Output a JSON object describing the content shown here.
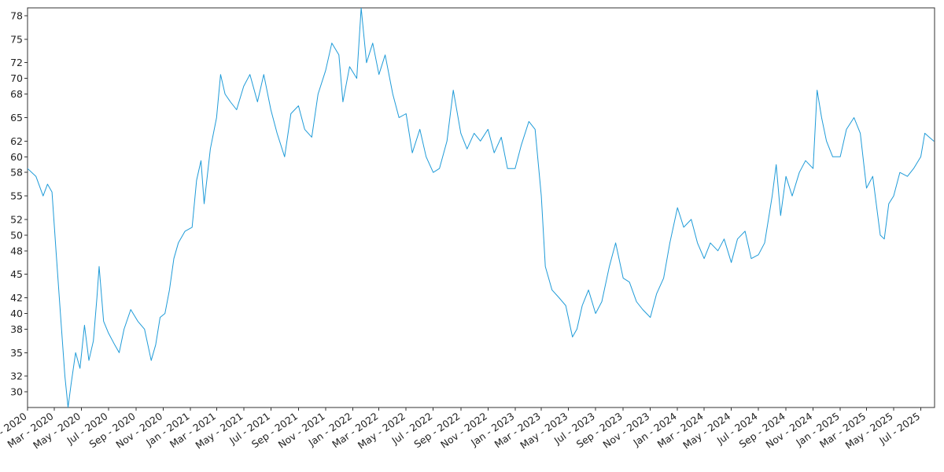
{
  "chart_data": {
    "type": "line",
    "title": "",
    "xlabel": "",
    "ylabel": "",
    "xlim": [
      "2020-01-01",
      "2025-08-01"
    ],
    "ylim": [
      28,
      79
    ],
    "grid": false,
    "legend": "none",
    "series_color": "#1f9bd8",
    "yticks": [
      30,
      32,
      35,
      38,
      40,
      42,
      45,
      48,
      50,
      52,
      55,
      58,
      60,
      62,
      65,
      68,
      70,
      72,
      75,
      78
    ],
    "xticks": [
      {
        "date": "2020-01-01",
        "label": "Jan - 2020"
      },
      {
        "date": "2020-03-01",
        "label": "Mar - 2020"
      },
      {
        "date": "2020-05-01",
        "label": "May - 2020"
      },
      {
        "date": "2020-07-01",
        "label": "Jul - 2020"
      },
      {
        "date": "2020-09-01",
        "label": "Sep - 2020"
      },
      {
        "date": "2020-11-01",
        "label": "Nov - 2020"
      },
      {
        "date": "2021-01-01",
        "label": "Jan - 2021"
      },
      {
        "date": "2021-03-01",
        "label": "Mar - 2021"
      },
      {
        "date": "2021-05-01",
        "label": "May - 2021"
      },
      {
        "date": "2021-07-01",
        "label": "Jul - 2021"
      },
      {
        "date": "2021-09-01",
        "label": "Sep - 2021"
      },
      {
        "date": "2021-11-01",
        "label": "Nov - 2021"
      },
      {
        "date": "2022-01-01",
        "label": "Jan - 2022"
      },
      {
        "date": "2022-03-01",
        "label": "Mar - 2022"
      },
      {
        "date": "2022-05-01",
        "label": "May - 2022"
      },
      {
        "date": "2022-07-01",
        "label": "Jul - 2022"
      },
      {
        "date": "2022-09-01",
        "label": "Sep - 2022"
      },
      {
        "date": "2022-11-01",
        "label": "Nov - 2022"
      },
      {
        "date": "2023-01-01",
        "label": "Jan - 2023"
      },
      {
        "date": "2023-03-01",
        "label": "Mar - 2023"
      },
      {
        "date": "2023-05-01",
        "label": "May - 2023"
      },
      {
        "date": "2023-07-01",
        "label": "Jul - 2023"
      },
      {
        "date": "2023-09-01",
        "label": "Sep - 2023"
      },
      {
        "date": "2023-11-01",
        "label": "Nov - 2023"
      },
      {
        "date": "2024-01-01",
        "label": "Jan - 2024"
      },
      {
        "date": "2024-03-01",
        "label": "Mar - 2024"
      },
      {
        "date": "2024-05-01",
        "label": "May - 2024"
      },
      {
        "date": "2024-07-01",
        "label": "Jul - 2024"
      },
      {
        "date": "2024-09-01",
        "label": "Sep - 2024"
      },
      {
        "date": "2024-11-01",
        "label": "Nov - 2024"
      },
      {
        "date": "2025-01-01",
        "label": "Jan - 2025"
      },
      {
        "date": "2025-03-01",
        "label": "Mar - 2025"
      },
      {
        "date": "2025-05-01",
        "label": "May - 2025"
      },
      {
        "date": "2025-07-01",
        "label": "Jul - 2025"
      }
    ],
    "series": [
      {
        "points": [
          [
            "2020-01-01",
            58.5
          ],
          [
            "2020-01-20",
            57.5
          ],
          [
            "2020-02-05",
            55.0
          ],
          [
            "2020-02-15",
            56.5
          ],
          [
            "2020-02-25",
            55.5
          ],
          [
            "2020-03-05",
            48.0
          ],
          [
            "2020-03-15",
            40.0
          ],
          [
            "2020-03-25",
            32.0
          ],
          [
            "2020-04-01",
            28.0
          ],
          [
            "2020-04-08",
            31.0
          ],
          [
            "2020-04-18",
            35.0
          ],
          [
            "2020-04-28",
            33.0
          ],
          [
            "2020-05-08",
            38.5
          ],
          [
            "2020-05-18",
            34.0
          ],
          [
            "2020-05-28",
            36.5
          ],
          [
            "2020-06-05",
            42.0
          ],
          [
            "2020-06-10",
            46.0
          ],
          [
            "2020-06-20",
            39.0
          ],
          [
            "2020-07-01",
            37.5
          ],
          [
            "2020-07-15",
            36.0
          ],
          [
            "2020-07-25",
            35.0
          ],
          [
            "2020-08-05",
            38.0
          ],
          [
            "2020-08-20",
            40.5
          ],
          [
            "2020-09-05",
            39.0
          ],
          [
            "2020-09-20",
            38.0
          ],
          [
            "2020-10-05",
            34.0
          ],
          [
            "2020-10-15",
            36.0
          ],
          [
            "2020-10-25",
            39.5
          ],
          [
            "2020-11-05",
            40.0
          ],
          [
            "2020-11-15",
            43.0
          ],
          [
            "2020-11-25",
            47.0
          ],
          [
            "2020-12-05",
            49.0
          ],
          [
            "2020-12-20",
            50.5
          ],
          [
            "2021-01-05",
            51.0
          ],
          [
            "2021-01-15",
            57.0
          ],
          [
            "2021-01-25",
            59.5
          ],
          [
            "2021-02-01",
            54.0
          ],
          [
            "2021-02-15",
            61.0
          ],
          [
            "2021-03-01",
            65.0
          ],
          [
            "2021-03-10",
            70.5
          ],
          [
            "2021-03-20",
            68.0
          ],
          [
            "2021-04-01",
            67.0
          ],
          [
            "2021-04-15",
            66.0
          ],
          [
            "2021-05-01",
            69.0
          ],
          [
            "2021-05-15",
            70.5
          ],
          [
            "2021-06-01",
            67.0
          ],
          [
            "2021-06-15",
            70.5
          ],
          [
            "2021-07-01",
            66.0
          ],
          [
            "2021-07-15",
            63.0
          ],
          [
            "2021-08-01",
            60.0
          ],
          [
            "2021-08-15",
            65.5
          ],
          [
            "2021-09-01",
            66.5
          ],
          [
            "2021-09-15",
            63.5
          ],
          [
            "2021-10-01",
            62.5
          ],
          [
            "2021-10-15",
            68.0
          ],
          [
            "2021-11-01",
            71.0
          ],
          [
            "2021-11-15",
            74.5
          ],
          [
            "2021-12-01",
            73.0
          ],
          [
            "2021-12-10",
            67.0
          ],
          [
            "2021-12-25",
            71.5
          ],
          [
            "2022-01-10",
            70.0
          ],
          [
            "2022-01-20",
            79.0
          ],
          [
            "2022-02-01",
            72.0
          ],
          [
            "2022-02-15",
            74.5
          ],
          [
            "2022-03-01",
            70.5
          ],
          [
            "2022-03-15",
            73.0
          ],
          [
            "2022-04-01",
            68.0
          ],
          [
            "2022-04-15",
            65.0
          ],
          [
            "2022-05-01",
            65.5
          ],
          [
            "2022-05-15",
            60.5
          ],
          [
            "2022-06-01",
            63.5
          ],
          [
            "2022-06-15",
            60.0
          ],
          [
            "2022-07-01",
            58.0
          ],
          [
            "2022-07-15",
            58.5
          ],
          [
            "2022-08-01",
            62.0
          ],
          [
            "2022-08-15",
            68.5
          ],
          [
            "2022-09-01",
            63.0
          ],
          [
            "2022-09-15",
            61.0
          ],
          [
            "2022-10-01",
            63.0
          ],
          [
            "2022-10-15",
            62.0
          ],
          [
            "2022-11-01",
            63.5
          ],
          [
            "2022-11-15",
            60.5
          ],
          [
            "2022-12-01",
            62.5
          ],
          [
            "2022-12-15",
            58.5
          ],
          [
            "2023-01-01",
            58.5
          ],
          [
            "2023-01-15",
            61.5
          ],
          [
            "2023-02-01",
            64.5
          ],
          [
            "2023-02-15",
            63.5
          ],
          [
            "2023-03-01",
            55.0
          ],
          [
            "2023-03-10",
            46.0
          ],
          [
            "2023-03-25",
            43.0
          ],
          [
            "2023-04-10",
            42.0
          ],
          [
            "2023-04-25",
            41.0
          ],
          [
            "2023-05-10",
            37.0
          ],
          [
            "2023-05-20",
            38.0
          ],
          [
            "2023-06-01",
            41.0
          ],
          [
            "2023-06-15",
            43.0
          ],
          [
            "2023-07-01",
            40.0
          ],
          [
            "2023-07-15",
            41.5
          ],
          [
            "2023-08-01",
            46.0
          ],
          [
            "2023-08-15",
            49.0
          ],
          [
            "2023-09-01",
            44.5
          ],
          [
            "2023-09-15",
            44.0
          ],
          [
            "2023-10-01",
            41.5
          ],
          [
            "2023-10-15",
            40.5
          ],
          [
            "2023-11-01",
            39.5
          ],
          [
            "2023-11-15",
            42.5
          ],
          [
            "2023-12-01",
            44.5
          ],
          [
            "2023-12-15",
            49.0
          ],
          [
            "2024-01-01",
            53.5
          ],
          [
            "2024-01-15",
            51.0
          ],
          [
            "2024-02-01",
            52.0
          ],
          [
            "2024-02-15",
            49.0
          ],
          [
            "2024-03-01",
            47.0
          ],
          [
            "2024-03-15",
            49.0
          ],
          [
            "2024-04-01",
            48.0
          ],
          [
            "2024-04-15",
            49.5
          ],
          [
            "2024-05-01",
            46.5
          ],
          [
            "2024-05-15",
            49.5
          ],
          [
            "2024-06-01",
            50.5
          ],
          [
            "2024-06-15",
            47.0
          ],
          [
            "2024-07-01",
            47.5
          ],
          [
            "2024-07-15",
            49.0
          ],
          [
            "2024-08-01",
            55.0
          ],
          [
            "2024-08-10",
            59.0
          ],
          [
            "2024-08-20",
            52.5
          ],
          [
            "2024-09-01",
            57.5
          ],
          [
            "2024-09-15",
            55.0
          ],
          [
            "2024-10-01",
            58.0
          ],
          [
            "2024-10-15",
            59.5
          ],
          [
            "2024-11-01",
            58.5
          ],
          [
            "2024-11-10",
            68.5
          ],
          [
            "2024-11-20",
            65.0
          ],
          [
            "2024-12-01",
            62.0
          ],
          [
            "2024-12-15",
            60.0
          ],
          [
            "2025-01-01",
            60.0
          ],
          [
            "2025-01-15",
            63.5
          ],
          [
            "2025-02-01",
            65.0
          ],
          [
            "2025-02-15",
            63.0
          ],
          [
            "2025-03-01",
            56.0
          ],
          [
            "2025-03-15",
            57.5
          ],
          [
            "2025-04-01",
            50.0
          ],
          [
            "2025-04-10",
            49.5
          ],
          [
            "2025-04-20",
            54.0
          ],
          [
            "2025-05-01",
            55.0
          ],
          [
            "2025-05-15",
            58.0
          ],
          [
            "2025-06-01",
            57.5
          ],
          [
            "2025-06-15",
            58.5
          ],
          [
            "2025-07-01",
            60.0
          ],
          [
            "2025-07-10",
            63.0
          ],
          [
            "2025-07-20",
            62.5
          ],
          [
            "2025-07-30",
            62.0
          ]
        ]
      }
    ]
  }
}
